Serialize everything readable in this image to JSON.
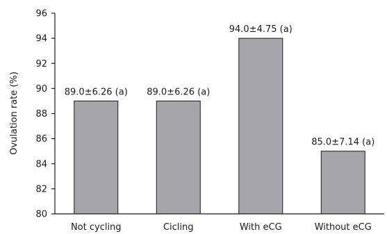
{
  "chart_data": {
    "type": "bar",
    "title": "",
    "xlabel": "",
    "ylabel": "Ovulation rate (%)",
    "ylim": [
      80,
      96
    ],
    "yticks": [
      80,
      82,
      84,
      86,
      88,
      90,
      92,
      94,
      96
    ],
    "grid": false,
    "legend": "none",
    "categories": [
      "Not cycling",
      "Cicling",
      "With eCG",
      "Without eCG"
    ],
    "values": [
      89.0,
      89.0,
      94.0,
      85.0
    ],
    "data_labels": [
      "89.0±6.26 (a)",
      "89.0±6.26 (a)",
      "94.0±4.75 (a)",
      "85.0±7.14 (a)"
    ],
    "bar_color": "#a6a6aa",
    "bar_edge_color": "#1a1a1a"
  }
}
